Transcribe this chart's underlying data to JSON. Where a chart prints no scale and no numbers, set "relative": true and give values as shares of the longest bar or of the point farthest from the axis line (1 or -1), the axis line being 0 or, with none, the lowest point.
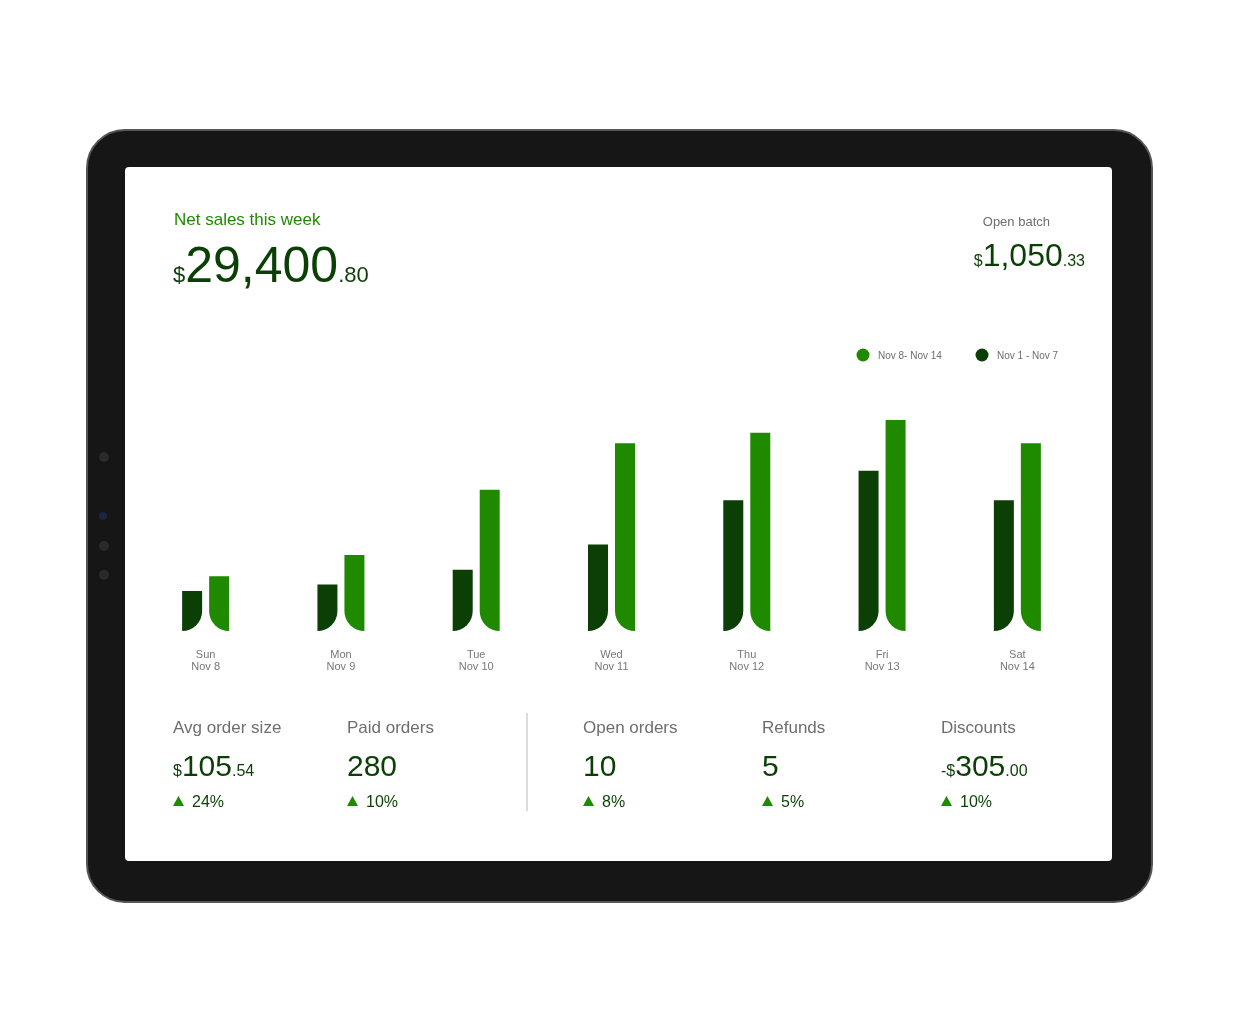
{
  "chart_data": [
    {
      "type": "other",
      "title": "Net sales this week",
      "annotations": [
        "$29,400.80",
        "Open batch",
        "$1,050.33"
      ]
    },
    {
      "type": "bar",
      "relative": true,
      "categories": [
        "Sun\nNov 8",
        "Mon\nNov 9",
        "Tue\nNov 10",
        "Wed\nNov 11",
        "Thu\nNov 12",
        "Fri\nNov 13",
        "Sat\nNov 14"
      ],
      "legend": "top right",
      "series": [
        {
          "name": "Nov 8- Nov 14",
          "color": "#1f8a00",
          "values": [
            0.26,
            0.36,
            0.67,
            0.89,
            0.94,
            1,
            0.89
          ]
        },
        {
          "name": "Nov 1 - Nov 7",
          "color": "#0b3f06",
          "values": [
            0.19,
            0.22,
            0.29,
            0.41,
            0.62,
            0.76,
            0.62
          ]
        }
      ]
    },
    {
      "type": "other",
      "annotations": [
        "Avg order size",
        "$105.54",
        "24%",
        "Paid orders",
        "280",
        "10%",
        "Open orders",
        "10",
        "8%",
        "Refunds",
        "5",
        "5%",
        "Discounts",
        "-$305.00",
        "10%"
      ]
    }
  ]
}
